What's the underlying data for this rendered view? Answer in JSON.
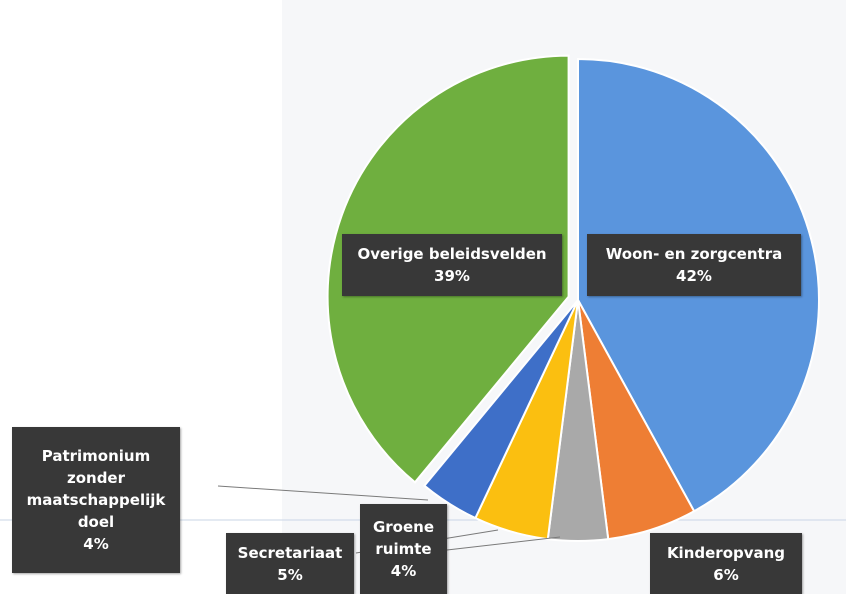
{
  "chart_data": {
    "type": "pie",
    "title": "",
    "slices": [
      {
        "name": "Woon- en zorgcentra",
        "percent_label": "42%",
        "value": 42,
        "color": "#5a95dd"
      },
      {
        "name": "Kinderopvang",
        "percent_label": "6%",
        "value": 6,
        "color": "#ee7e34"
      },
      {
        "name": "Groene ruimte",
        "percent_label": "4%",
        "value": 4,
        "color": "#a9a9a9"
      },
      {
        "name": "Secretariaat",
        "percent_label": "5%",
        "value": 5,
        "color": "#fbbf10"
      },
      {
        "name": "Patrimonium zonder maatschappelijk doel",
        "percent_label": "4%",
        "value": 4,
        "color": "#3e6fc8"
      },
      {
        "name": "Overige beleidsvelden",
        "percent_label": "39%",
        "value": 39,
        "color": "#6faf3f"
      }
    ],
    "exploded_slice": "Overige beleidsvelden",
    "legend": "none",
    "data_labels": "callout boxes (category name and percentage)"
  },
  "labels": {
    "woon": {
      "line1": "Woon- en zorgcentra",
      "pct": "42%"
    },
    "overige": {
      "line1": "Overige beleidsvelden",
      "pct": "39%"
    },
    "patrimonium": {
      "line1": "Patrimonium",
      "line2": "zonder",
      "line3": "maatschappelijk",
      "line4": "doel",
      "pct": "4%"
    },
    "secretariaat": {
      "line1": "Secretariaat",
      "pct": "5%"
    },
    "groene": {
      "line1": "Groene",
      "line2": "ruimte",
      "pct": "4%"
    },
    "kinderopvang": {
      "line1": "Kinderopvang",
      "pct": "6%"
    }
  }
}
